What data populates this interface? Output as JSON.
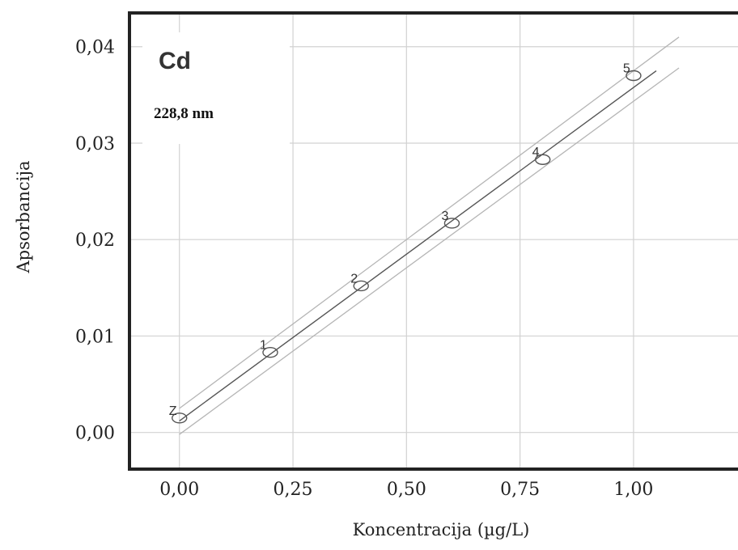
{
  "chart_data": {
    "type": "scatter",
    "element_label": "Cd",
    "wavelength_label": "228,8 nm",
    "xlabel": "Koncentracija (µg/L)",
    "ylabel": "Apsorbancija",
    "xlim": [
      -0.11,
      1.23
    ],
    "ylim": [
      -0.0038,
      0.0435
    ],
    "x_ticks": [
      0,
      0.25,
      0.5,
      0.75,
      1.0
    ],
    "x_tick_labels": [
      "0,00",
      "0,25",
      "0,50",
      "0,75",
      "1,00"
    ],
    "y_ticks": [
      0,
      0.01,
      0.02,
      0.03,
      0.04
    ],
    "y_tick_labels": [
      "0,00",
      "0,01",
      "0,02",
      "0,03",
      "0,04"
    ],
    "grid": true,
    "points": [
      {
        "label": "Z",
        "x": 0.0,
        "y": 0.0015
      },
      {
        "label": "1",
        "x": 0.2,
        "y": 0.0083
      },
      {
        "label": "2",
        "x": 0.4,
        "y": 0.0152
      },
      {
        "label": "3",
        "x": 0.6,
        "y": 0.0217
      },
      {
        "label": "4",
        "x": 0.8,
        "y": 0.0283
      },
      {
        "label": "5",
        "x": 1.0,
        "y": 0.037
      }
    ],
    "fit_line": {
      "x": [
        0.0,
        1.05
      ],
      "y": [
        0.0012,
        0.0375
      ]
    },
    "confidence_band": {
      "upper": {
        "x": [
          0.0,
          1.1
        ],
        "y": [
          0.0025,
          0.041
        ]
      },
      "lower": {
        "x": [
          0.0,
          1.1
        ],
        "y": [
          -0.0002,
          0.0378
        ]
      }
    },
    "colors": {
      "frame": "#222222",
      "grid": "#d2d2d2",
      "fit": "#555555",
      "band": "#b5b5b5",
      "marker": "#555555"
    }
  }
}
